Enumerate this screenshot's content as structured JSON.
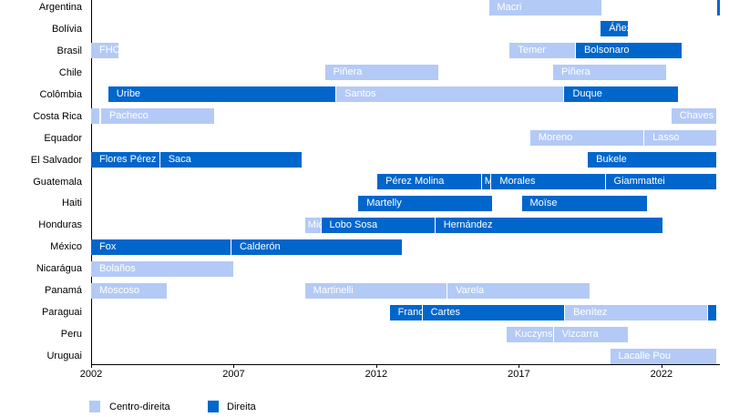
{
  "chart_data": {
    "type": "timeline",
    "xlim": [
      2002,
      2024.05
    ],
    "x_ticks": [
      2002,
      2007,
      2012,
      2017,
      2022
    ],
    "colors": {
      "Centro-direita": "#b4caf6",
      "Direita": "#0066cc"
    },
    "legend": {
      "position": "bottom-left",
      "entries": [
        "Centro-direita",
        "Direita"
      ]
    },
    "rows": [
      {
        "country": "Argentina",
        "terms": [
          {
            "name": "Macri",
            "start": 2015.95,
            "end": 2019.93,
            "type": "Centro-direita"
          },
          {
            "name": "",
            "start": 2023.94,
            "end": 2024.05,
            "type": "Direita"
          }
        ]
      },
      {
        "country": "Bolívia",
        "terms": [
          {
            "name": "Áñez",
            "start": 2019.87,
            "end": 2020.86,
            "type": "Direita"
          }
        ]
      },
      {
        "country": "Brasil",
        "terms": [
          {
            "name": "FHC",
            "start": 2002.0,
            "end": 2003.0,
            "type": "Centro-direita"
          },
          {
            "name": "Temer",
            "start": 2016.68,
            "end": 2019.0,
            "type": "Centro-direita"
          },
          {
            "name": "Bolsonaro",
            "start": 2019.0,
            "end": 2022.74,
            "type": "Direita"
          }
        ]
      },
      {
        "country": "Chile",
        "terms": [
          {
            "name": "Piñera",
            "start": 2010.2,
            "end": 2014.2,
            "type": "Centro-direita"
          },
          {
            "name": "Piñera",
            "start": 2018.2,
            "end": 2022.2,
            "type": "Centro-direita"
          }
        ]
      },
      {
        "country": "Colômbia",
        "terms": [
          {
            "name": "Uribe",
            "start": 2002.6,
            "end": 2010.6,
            "type": "Direita"
          },
          {
            "name": "Santos",
            "start": 2010.6,
            "end": 2018.6,
            "type": "Centro-direita"
          },
          {
            "name": "Duque",
            "start": 2018.6,
            "end": 2022.6,
            "type": "Direita"
          }
        ]
      },
      {
        "country": "Costa Rica",
        "terms": [
          {
            "name": "",
            "start": 2002.0,
            "end": 2002.33,
            "type": "Centro-direita"
          },
          {
            "name": "Pacheco",
            "start": 2002.35,
            "end": 2006.35,
            "type": "Centro-direita"
          },
          {
            "name": "Chaves",
            "start": 2022.35,
            "end": 2023.94,
            "type": "Centro-direita"
          }
        ]
      },
      {
        "country": "Equador",
        "terms": [
          {
            "name": "Moreno",
            "start": 2017.4,
            "end": 2021.4,
            "type": "Centro-direita"
          },
          {
            "name": "Lasso",
            "start": 2021.4,
            "end": 2023.94,
            "type": "Centro-direita"
          }
        ]
      },
      {
        "country": "El Salvador",
        "terms": [
          {
            "name": "Flores Pérez",
            "start": 2002.0,
            "end": 2004.42,
            "type": "Direita"
          },
          {
            "name": "Saca",
            "start": 2004.42,
            "end": 2009.42,
            "type": "Direita"
          },
          {
            "name": "Bukele",
            "start": 2019.42,
            "end": 2023.94,
            "type": "Direita"
          }
        ]
      },
      {
        "country": "Guatemala",
        "terms": [
          {
            "name": "Pérez Molina",
            "start": 2012.04,
            "end": 2015.7,
            "type": "Direita"
          },
          {
            "name": "Maldonado",
            "start": 2015.7,
            "end": 2016.04,
            "type": "Direita"
          },
          {
            "name": "Morales",
            "start": 2016.04,
            "end": 2020.04,
            "type": "Direita"
          },
          {
            "name": "Giammattei",
            "start": 2020.04,
            "end": 2023.94,
            "type": "Direita"
          }
        ]
      },
      {
        "country": "Haiti",
        "terms": [
          {
            "name": "Martelly",
            "start": 2011.37,
            "end": 2016.1,
            "type": "Direita"
          },
          {
            "name": "Moïse",
            "start": 2017.1,
            "end": 2021.52,
            "type": "Direita"
          }
        ]
      },
      {
        "country": "Honduras",
        "terms": [
          {
            "name": "Micheletti",
            "start": 2009.5,
            "end": 2010.07,
            "type": "Centro-direita"
          },
          {
            "name": "Lobo Sosa",
            "start": 2010.07,
            "end": 2014.07,
            "type": "Direita"
          },
          {
            "name": "Hernández",
            "start": 2014.07,
            "end": 2022.07,
            "type": "Direita"
          }
        ]
      },
      {
        "country": "México",
        "terms": [
          {
            "name": "Fox",
            "start": 2002.0,
            "end": 2006.92,
            "type": "Direita"
          },
          {
            "name": "Calderón",
            "start": 2006.92,
            "end": 2012.92,
            "type": "Direita"
          }
        ]
      },
      {
        "country": "Nicarágua",
        "terms": [
          {
            "name": "Bolaños",
            "start": 2002.0,
            "end": 2007.03,
            "type": "Centro-direita"
          }
        ]
      },
      {
        "country": "Panamá",
        "terms": [
          {
            "name": "Moscoso",
            "start": 2002.0,
            "end": 2004.67,
            "type": "Centro-direita"
          },
          {
            "name": "Martinelli",
            "start": 2009.5,
            "end": 2014.5,
            "type": "Centro-direita"
          },
          {
            "name": "Varela",
            "start": 2014.5,
            "end": 2019.5,
            "type": "Centro-direita"
          }
        ]
      },
      {
        "country": "Paraguai",
        "terms": [
          {
            "name": "Franco",
            "start": 2012.47,
            "end": 2013.62,
            "type": "Direita"
          },
          {
            "name": "Cartes",
            "start": 2013.62,
            "end": 2018.62,
            "type": "Direita"
          },
          {
            "name": "Benítez",
            "start": 2018.62,
            "end": 2023.62,
            "type": "Centro-direita"
          },
          {
            "name": "",
            "start": 2023.62,
            "end": 2023.94,
            "type": "Direita"
          }
        ]
      },
      {
        "country": "Peru",
        "terms": [
          {
            "name": "Kuczynski",
            "start": 2016.57,
            "end": 2018.22,
            "type": "Centro-direita"
          },
          {
            "name": "Vizcarra",
            "start": 2018.22,
            "end": 2020.87,
            "type": "Centro-direita"
          }
        ]
      },
      {
        "country": "Uruguai",
        "terms": [
          {
            "name": "Lacalle Pou",
            "start": 2020.2,
            "end": 2023.94,
            "type": "Centro-direita"
          }
        ]
      }
    ]
  }
}
